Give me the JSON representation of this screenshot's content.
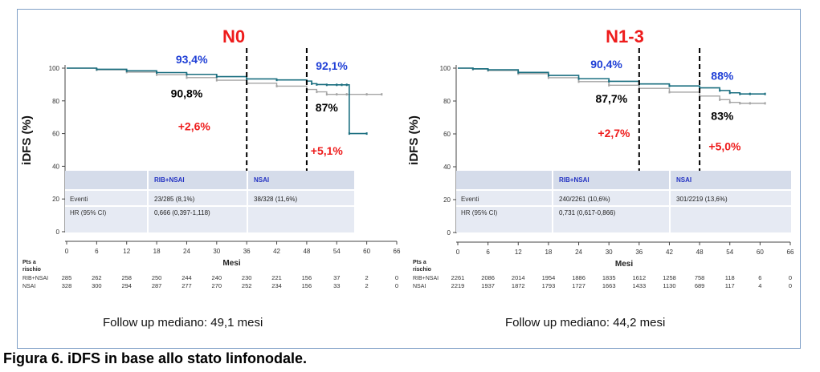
{
  "caption": "Figura 6. iDFS in base allo stato linfonodale.",
  "colors": {
    "rib": "#1b6f80",
    "nsai": "#a4a4a4",
    "table_header": "#d5dcea",
    "table_row": "#e6eaf3",
    "blue_label": "#1f3fd6",
    "red_label": "#ee1c1c",
    "frame": "#7f9fc6"
  },
  "chart_data": [
    {
      "type": "line",
      "title": "N0",
      "xlabel": "Mesi",
      "ylabel": "iDFS (%)",
      "xlim": [
        0,
        66
      ],
      "ylim": [
        0,
        100
      ],
      "x_ticks": [
        0,
        6,
        12,
        18,
        24,
        30,
        36,
        42,
        48,
        54,
        60,
        66
      ],
      "y_ticks": [
        0,
        20,
        40,
        60,
        80,
        100
      ],
      "series": [
        {
          "name": "RIB+NSAI",
          "color": "#1b6f80",
          "x": [
            0,
            6,
            12,
            18,
            24,
            30,
            36,
            42,
            48,
            49,
            50,
            52,
            54,
            55,
            56,
            56.5,
            60
          ],
          "y": [
            100,
            99.3,
            98.4,
            97.3,
            96.2,
            94.8,
            93.4,
            92.8,
            92.1,
            90.5,
            90.0,
            89.8,
            89.8,
            89.8,
            89.8,
            60,
            60
          ]
        },
        {
          "name": "NSAI",
          "color": "#a4a4a4",
          "x": [
            0,
            6,
            12,
            18,
            24,
            30,
            36,
            42,
            48,
            50,
            52,
            54,
            56,
            60,
            63
          ],
          "y": [
            100,
            99.0,
            97.6,
            96.0,
            94.2,
            92.6,
            90.8,
            89.0,
            87.0,
            85.5,
            84.0,
            84.0,
            84.0,
            84.0,
            84.0
          ]
        }
      ],
      "landmarks": [
        36,
        48
      ],
      "annotations": [
        {
          "text": "93,4%",
          "color": "#1f3fd6",
          "x": 25,
          "y": 103
        },
        {
          "text": "92,1%",
          "color": "#1f3fd6",
          "x": 53,
          "y": 99
        },
        {
          "text": "90,8%",
          "color": "#000000",
          "x": 24,
          "y": 82
        },
        {
          "text": "87%",
          "color": "#000000",
          "x": 52,
          "y": 73.5
        },
        {
          "text": "+2,6%",
          "color": "#ee1c1c",
          "x": 25.5,
          "y": 62
        },
        {
          "text": "+5,1%",
          "color": "#ee1c1c",
          "x": 52,
          "y": 47
        }
      ],
      "table": {
        "headers": [
          "",
          "RIB+NSAI",
          "NSAI"
        ],
        "rows": [
          [
            "Eventi",
            "23/285 (8,1%)",
            "38/328 (11,6%)"
          ],
          [
            "HR (95% CI)",
            "0,666 (0,397-1,118)",
            ""
          ]
        ]
      },
      "at_risk": {
        "title": "Pts a rischio",
        "rows": [
          {
            "label": "RIB+NSAI",
            "values": [
              "285",
              "262",
              "258",
              "250",
              "244",
              "240",
              "230",
              "221",
              "156",
              "37",
              "2",
              "0"
            ]
          },
          {
            "label": "NSAI",
            "values": [
              "328",
              "300",
              "294",
              "287",
              "277",
              "270",
              "252",
              "234",
              "156",
              "33",
              "2",
              "0"
            ]
          }
        ]
      },
      "followup": "Follow up mediano: 49,1 mesi"
    },
    {
      "type": "line",
      "title": "N1-3",
      "xlabel": "Mesi",
      "ylabel": "iDFS (%)",
      "xlim": [
        0,
        66
      ],
      "ylim": [
        0,
        100
      ],
      "x_ticks": [
        0,
        6,
        12,
        18,
        24,
        30,
        36,
        42,
        48,
        54,
        60,
        66
      ],
      "y_ticks": [
        0,
        20,
        40,
        60,
        80,
        100
      ],
      "series": [
        {
          "name": "RIB+NSAI",
          "color": "#1b6f80",
          "x": [
            0,
            3,
            6,
            12,
            18,
            24,
            30,
            36,
            42,
            48,
            52,
            54,
            56,
            58,
            61
          ],
          "y": [
            100,
            99.6,
            99.0,
            97.4,
            95.6,
            93.6,
            92.0,
            90.4,
            89.2,
            88.0,
            86.4,
            85.0,
            84.3,
            84.3,
            84.3
          ]
        },
        {
          "name": "NSAI",
          "color": "#a4a4a4",
          "x": [
            0,
            3,
            6,
            12,
            18,
            24,
            30,
            36,
            42,
            48,
            52,
            54,
            56,
            58,
            61
          ],
          "y": [
            100,
            99.4,
            98.6,
            96.6,
            94.2,
            91.8,
            89.6,
            87.7,
            85.4,
            83.0,
            80.8,
            79.2,
            78.6,
            78.6,
            78.6
          ]
        }
      ],
      "landmarks": [
        36,
        48
      ],
      "annotations": [
        {
          "text": "90,4%",
          "color": "#1f3fd6",
          "x": 29.5,
          "y": 100
        },
        {
          "text": "88%",
          "color": "#1f3fd6",
          "x": 52.5,
          "y": 93
        },
        {
          "text": "87,7%",
          "color": "#000000",
          "x": 30.5,
          "y": 79
        },
        {
          "text": "83%",
          "color": "#000000",
          "x": 52.5,
          "y": 68.5
        },
        {
          "text": "+2,7%",
          "color": "#ee1c1c",
          "x": 31,
          "y": 58
        },
        {
          "text": "+5,0%",
          "color": "#ee1c1c",
          "x": 53,
          "y": 50
        }
      ],
      "table": {
        "headers": [
          "",
          "RIB+NSAI",
          "NSAI"
        ],
        "rows": [
          [
            "Eventi",
            "240/2261 (10,6%)",
            "301/2219 (13,6%)"
          ],
          [
            "HR (95% CI)",
            "0,731 (0,617-0,866)",
            ""
          ]
        ]
      },
      "at_risk": {
        "title": "Pts a rischio",
        "rows": [
          {
            "label": "RIB+NSAI",
            "values": [
              "2261",
              "2086",
              "2014",
              "1954",
              "1886",
              "1835",
              "1612",
              "1258",
              "758",
              "118",
              "6",
              "0"
            ]
          },
          {
            "label": "NSAI",
            "values": [
              "2219",
              "1937",
              "1872",
              "1793",
              "1727",
              "1663",
              "1433",
              "1130",
              "689",
              "117",
              "4",
              "0"
            ]
          }
        ]
      },
      "followup": "Follow up mediano: 44,2 mesi"
    }
  ]
}
